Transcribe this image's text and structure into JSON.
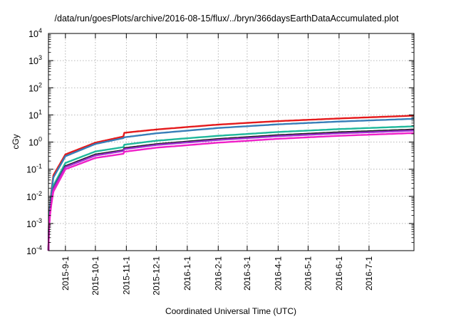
{
  "chart_data": {
    "type": "line",
    "title": "/data/run/goesPlots/archive/2016-08-15/flux/../bryn/366daysEarthDataAccumulated.plot",
    "xlabel": "Coordinated Universal Time (UTC)",
    "ylabel": "cGy",
    "y_scale": "log",
    "ylim": [
      0.0001,
      10000
    ],
    "y_ticks": [
      {
        "base": "10",
        "exp": "-4",
        "value": 0.0001
      },
      {
        "base": "10",
        "exp": "-3",
        "value": 0.001
      },
      {
        "base": "10",
        "exp": "-2",
        "value": 0.01
      },
      {
        "base": "10",
        "exp": "-1",
        "value": 0.1
      },
      {
        "base": "10",
        "exp": "0",
        "value": 1
      },
      {
        "base": "10",
        "exp": "1",
        "value": 10
      },
      {
        "base": "10",
        "exp": "2",
        "value": 100
      },
      {
        "base": "10",
        "exp": "3",
        "value": 1000
      },
      {
        "base": "10",
        "exp": "4",
        "value": 10000
      }
    ],
    "xlim": [
      "2015-08-15",
      "2016-08-15"
    ],
    "x_ticks": [
      "2015-9-1",
      "2015-10-1",
      "2015-11-1",
      "2015-12-1",
      "2016-1-1",
      "2016-2-1",
      "2016-3-1",
      "2016-4-1",
      "2016-5-1",
      "2016-6-1",
      "2016-7-1"
    ],
    "grid": true,
    "legend": "none",
    "x": [
      "2015-08-15",
      "2015-08-20",
      "2015-09-01",
      "2015-10-01",
      "2015-10-29",
      "2015-10-30",
      "2015-12-01",
      "2016-02-01",
      "2016-04-01",
      "2016-06-01",
      "2016-08-15"
    ],
    "series": [
      {
        "color": "#e41a1c",
        "values": [
          0.0001,
          0.06,
          0.35,
          0.95,
          1.6,
          2.2,
          2.9,
          4.4,
          5.9,
          7.4,
          9.4
        ]
      },
      {
        "color": "#377eb8",
        "values": [
          0.0001,
          0.05,
          0.3,
          0.85,
          1.4,
          1.5,
          2.1,
          3.3,
          4.5,
          5.7,
          7.2
        ]
      },
      {
        "color": "#1fb89b",
        "values": [
          0.0001,
          0.025,
          0.17,
          0.45,
          0.65,
          0.8,
          1.12,
          1.7,
          2.35,
          3.0,
          3.8
        ]
      },
      {
        "color": "#222222",
        "values": [
          0.0001,
          0.02,
          0.13,
          0.35,
          0.5,
          0.6,
          0.84,
          1.3,
          1.8,
          2.3,
          2.9
        ]
      },
      {
        "color": "#9d2fd0",
        "values": [
          0.0001,
          0.019,
          0.12,
          0.32,
          0.47,
          0.55,
          0.78,
          1.2,
          1.65,
          2.1,
          2.65
        ]
      },
      {
        "color": "#f01fc8",
        "values": [
          0.0001,
          0.015,
          0.1,
          0.26,
          0.37,
          0.44,
          0.62,
          0.95,
          1.32,
          1.7,
          2.15
        ]
      }
    ]
  }
}
